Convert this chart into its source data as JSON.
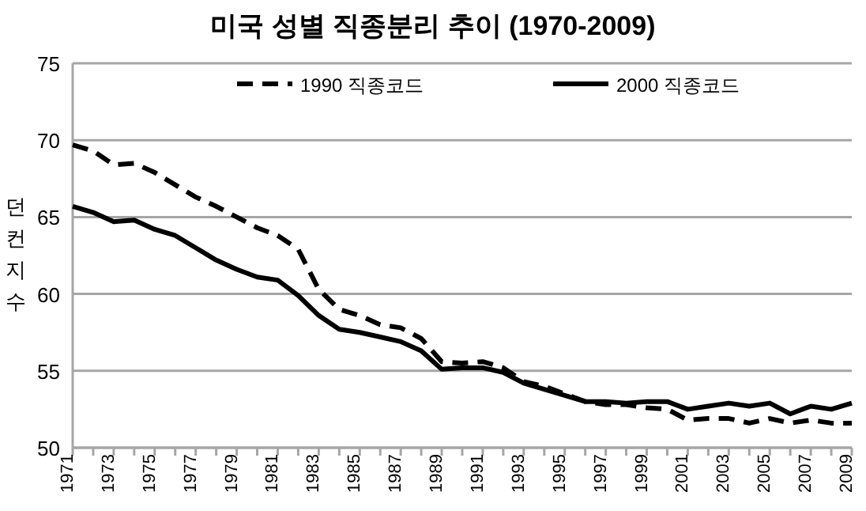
{
  "chart_data": {
    "type": "line",
    "title": "미국 성별 직종분리 추이 (1970-2009)",
    "ylabel": "던컨지수",
    "categories": [
      "1971",
      null,
      "1973",
      null,
      "1975",
      null,
      "1977",
      null,
      "1979",
      null,
      "1981",
      null,
      "1983",
      null,
      "1985",
      null,
      "1987",
      null,
      "1989",
      null,
      "1991",
      null,
      "1993",
      null,
      "1995",
      null,
      "1997",
      null,
      "1999",
      null,
      "2001",
      null,
      "2003",
      null,
      "2005",
      null,
      "2007",
      null,
      "2009"
    ],
    "series": [
      {
        "name": "1990 직종코드",
        "color": "#000000",
        "line_style": "dashed",
        "values": [
          69.7,
          69.3,
          68.4,
          68.5,
          67.9,
          67.1,
          66.3,
          65.7,
          65.0,
          64.3,
          63.8,
          62.9,
          60.3,
          59.0,
          58.6,
          58.0,
          57.8,
          57.1,
          55.6,
          55.5,
          55.6,
          55.2,
          54.3,
          54.0,
          53.5,
          53.0,
          52.8,
          52.8,
          52.6,
          52.5,
          51.8,
          51.9,
          51.9,
          51.6,
          51.9,
          51.6,
          51.8,
          51.6,
          51.6
        ]
      },
      {
        "name": "2000 직종코드",
        "color": "#000000",
        "line_style": "solid",
        "values": [
          65.7,
          65.3,
          64.7,
          64.8,
          64.2,
          63.8,
          63.0,
          62.2,
          61.6,
          61.1,
          60.9,
          59.9,
          58.6,
          57.7,
          57.5,
          57.2,
          56.9,
          56.3,
          55.1,
          55.2,
          55.2,
          54.9,
          54.2,
          53.8,
          53.4,
          53.0,
          53.0,
          52.9,
          53.0,
          53.0,
          52.5,
          52.7,
          52.9,
          52.7,
          52.9,
          52.2,
          52.7,
          52.5,
          52.9
        ]
      }
    ],
    "ylim": [
      50,
      75
    ],
    "yticks": [
      50,
      55,
      60,
      65,
      70,
      75
    ],
    "grid": "y",
    "legend": "top",
    "marker": "none"
  }
}
